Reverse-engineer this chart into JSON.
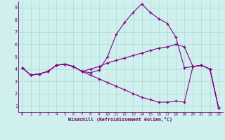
{
  "xlabel": "Windchill (Refroidissement éolien,°C)",
  "bg_color": "#cff0ee",
  "line_color": "#880088",
  "grid_color": "#aaddcc",
  "axis_color": "#660066",
  "xlim": [
    -0.5,
    23.5
  ],
  "ylim": [
    0.5,
    9.5
  ],
  "xticks": [
    0,
    1,
    2,
    3,
    4,
    5,
    6,
    7,
    8,
    9,
    10,
    11,
    12,
    13,
    14,
    15,
    16,
    17,
    18,
    19,
    20,
    21,
    22,
    23
  ],
  "yticks": [
    1,
    2,
    3,
    4,
    5,
    6,
    7,
    8,
    9
  ],
  "line1_x": [
    0,
    1,
    2,
    3,
    4,
    5,
    6,
    7,
    8,
    9,
    10,
    11,
    12,
    13,
    14,
    15,
    16,
    17,
    18,
    19,
    20,
    21,
    22,
    23
  ],
  "line1_y": [
    4.1,
    3.5,
    3.6,
    3.8,
    4.3,
    4.4,
    4.2,
    3.8,
    3.7,
    3.9,
    5.0,
    6.8,
    7.8,
    8.6,
    9.3,
    8.6,
    8.1,
    7.7,
    6.6,
    4.1,
    4.2,
    4.3,
    4.0,
    0.85
  ],
  "line2_x": [
    0,
    1,
    2,
    3,
    4,
    5,
    6,
    7,
    8,
    9,
    10,
    11,
    12,
    13,
    14,
    15,
    16,
    17,
    18,
    19,
    20,
    21,
    22,
    23
  ],
  "line2_y": [
    4.1,
    3.5,
    3.6,
    3.8,
    4.3,
    4.4,
    4.2,
    3.8,
    4.0,
    4.2,
    4.5,
    4.7,
    4.9,
    5.1,
    5.3,
    5.5,
    5.7,
    5.8,
    6.0,
    5.8,
    4.2,
    4.3,
    4.0,
    0.85
  ],
  "line3_x": [
    0,
    1,
    2,
    3,
    4,
    5,
    6,
    7,
    8,
    9,
    10,
    11,
    12,
    13,
    14,
    15,
    16,
    17,
    18,
    19,
    20,
    21,
    22,
    23
  ],
  "line3_y": [
    4.1,
    3.5,
    3.6,
    3.8,
    4.3,
    4.4,
    4.2,
    3.8,
    3.5,
    3.2,
    2.9,
    2.6,
    2.3,
    2.0,
    1.7,
    1.5,
    1.3,
    1.3,
    1.4,
    1.3,
    4.2,
    4.3,
    4.0,
    0.85
  ]
}
